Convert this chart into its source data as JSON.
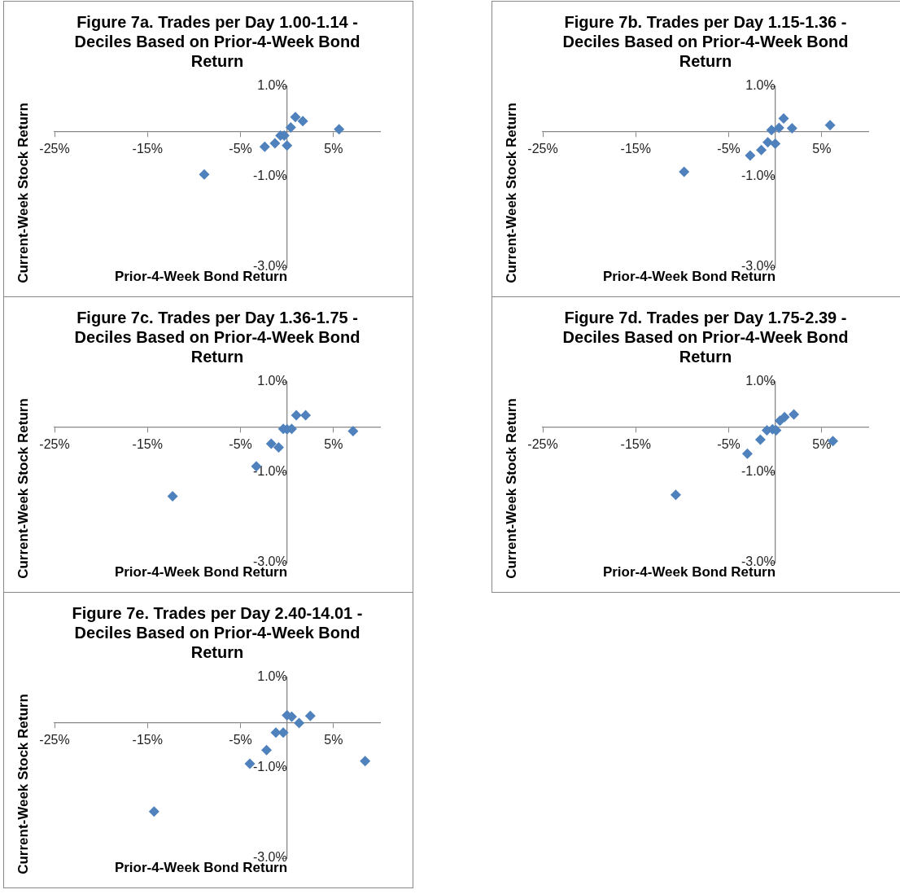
{
  "chart_data": [
    {
      "type": "scatter",
      "title": "Figure 7a. Trades per Day 1.00-1.14 - Deciles Based on Prior-4-Week Bond Return",
      "xlabel": "Prior-4-Week Bond Return",
      "ylabel": "Current-Week Stock Return",
      "color": "#4f81bd",
      "marker": "diamond",
      "grid": false,
      "x": [
        -8.9,
        -2.4,
        -1.3,
        -0.7,
        -0.3,
        0.0,
        0.4,
        0.9,
        1.7,
        5.6
      ],
      "values": [
        -0.95,
        -0.34,
        -0.26,
        -0.09,
        -0.09,
        -0.31,
        0.09,
        0.32,
        0.23,
        0.05
      ],
      "xlim": [
        -25,
        10
      ],
      "ylim": [
        -3,
        1
      ],
      "xticks": [
        {
          "value": -25,
          "label": "-25%"
        },
        {
          "value": -15,
          "label": "-15%"
        },
        {
          "value": -5,
          "label": "-5%"
        },
        {
          "value": 5,
          "label": "5%"
        }
      ],
      "yticks": [
        {
          "value": -3,
          "label": "-3.0%"
        },
        {
          "value": -1,
          "label": "-1.0%"
        },
        {
          "value": 1,
          "label": "1.0%"
        }
      ]
    },
    {
      "type": "scatter",
      "title": "Figure 7b. Trades per Day 1.15-1.36 - Deciles Based on Prior-4-Week Bond Return",
      "xlabel": "Prior-4-Week Bond Return",
      "ylabel": "Current-Week Stock Return",
      "color": "#4f81bd",
      "marker": "diamond",
      "grid": false,
      "x": [
        -9.8,
        -2.7,
        -1.5,
        -0.8,
        -0.4,
        0.0,
        0.4,
        0.9,
        1.8,
        5.9
      ],
      "values": [
        -0.89,
        -0.53,
        -0.41,
        -0.24,
        0.03,
        -0.27,
        0.08,
        0.29,
        0.07,
        0.14
      ],
      "xlim": [
        -25,
        10
      ],
      "ylim": [
        -3,
        1
      ],
      "xticks": [
        {
          "value": -25,
          "label": "-25%"
        },
        {
          "value": -15,
          "label": "-15%"
        },
        {
          "value": -5,
          "label": "-5%"
        },
        {
          "value": 5,
          "label": "5%"
        }
      ],
      "yticks": [
        {
          "value": -3,
          "label": "-3.0%"
        },
        {
          "value": -1,
          "label": "-1.0%"
        },
        {
          "value": 1,
          "label": "1.0%"
        }
      ]
    },
    {
      "type": "scatter",
      "title": "Figure 7c. Trades per Day 1.36-1.75 - Deciles Based on Prior-4-Week Bond Return",
      "xlabel": "Prior-4-Week Bond Return",
      "ylabel": "Current-Week Stock Return",
      "color": "#4f81bd",
      "marker": "diamond",
      "grid": false,
      "x": [
        -12.3,
        -3.3,
        -1.7,
        -0.9,
        -0.4,
        0.0,
        0.5,
        1.0,
        2.0,
        7.1
      ],
      "values": [
        -1.53,
        -0.87,
        -0.37,
        -0.45,
        -0.04,
        -0.05,
        -0.04,
        0.26,
        0.26,
        -0.09
      ],
      "xlim": [
        -25,
        10
      ],
      "ylim": [
        -3,
        1
      ],
      "xticks": [
        {
          "value": -25,
          "label": "-25%"
        },
        {
          "value": -15,
          "label": "-15%"
        },
        {
          "value": -5,
          "label": "-5%"
        },
        {
          "value": 5,
          "label": "5%"
        }
      ],
      "yticks": [
        {
          "value": -3,
          "label": "-3.0%"
        },
        {
          "value": -1,
          "label": "-1.0%"
        },
        {
          "value": 1,
          "label": "1.0%"
        }
      ]
    },
    {
      "type": "scatter",
      "title": "Figure 7d. Trades per Day 1.75-2.39 - Deciles Based on Prior-4-Week Bond Return",
      "xlabel": "Prior-4-Week Bond Return",
      "ylabel": "Current-Week Stock Return",
      "color": "#4f81bd",
      "marker": "diamond",
      "grid": false,
      "x": [
        -10.7,
        -3.0,
        -1.6,
        -0.9,
        -0.3,
        0.1,
        0.5,
        1.0,
        2.0,
        6.2
      ],
      "values": [
        -1.5,
        -0.59,
        -0.28,
        -0.07,
        -0.05,
        -0.07,
        0.14,
        0.22,
        0.28,
        -0.31
      ],
      "xlim": [
        -25,
        10
      ],
      "ylim": [
        -3,
        1
      ],
      "xticks": [
        {
          "value": -25,
          "label": "-25%"
        },
        {
          "value": -15,
          "label": "-15%"
        },
        {
          "value": -5,
          "label": "-5%"
        },
        {
          "value": 5,
          "label": "5%"
        }
      ],
      "yticks": [
        {
          "value": -3,
          "label": "-3.0%"
        },
        {
          "value": -1,
          "label": "-1.0%"
        },
        {
          "value": 1,
          "label": "1.0%"
        }
      ]
    },
    {
      "type": "scatter",
      "title": "Figure 7e. Trades per Day 2.40-14.01 - Deciles Based on Prior-4-Week Bond Return",
      "xlabel": "Prior-4-Week Bond Return",
      "ylabel": "Current-Week Stock Return",
      "color": "#4f81bd",
      "marker": "diamond",
      "grid": false,
      "x": [
        -14.3,
        -4.0,
        -2.2,
        -1.2,
        -0.4,
        0.0,
        0.5,
        1.3,
        2.5,
        8.4
      ],
      "values": [
        -1.97,
        -0.91,
        -0.61,
        -0.22,
        -0.22,
        0.16,
        0.13,
        -0.01,
        0.15,
        -0.85
      ],
      "xlim": [
        -25,
        10
      ],
      "ylim": [
        -3,
        1
      ],
      "xticks": [
        {
          "value": -25,
          "label": "-25%"
        },
        {
          "value": -15,
          "label": "-15%"
        },
        {
          "value": -5,
          "label": "-5%"
        },
        {
          "value": 5,
          "label": "5%"
        }
      ],
      "yticks": [
        {
          "value": -3,
          "label": "-3.0%"
        },
        {
          "value": -1,
          "label": "-1.0%"
        },
        {
          "value": 1,
          "label": "1.0%"
        }
      ]
    }
  ]
}
